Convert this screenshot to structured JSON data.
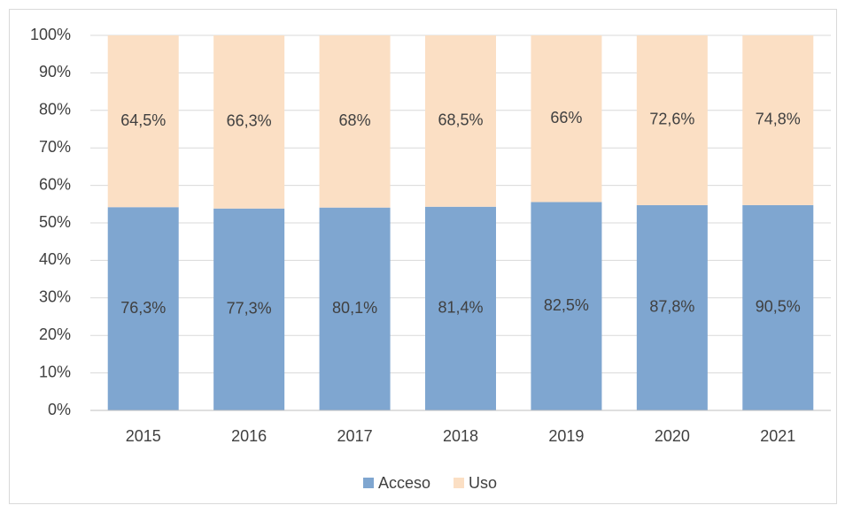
{
  "chart_data": {
    "type": "bar",
    "stacking": "percent",
    "categories": [
      "2015",
      "2016",
      "2017",
      "2018",
      "2019",
      "2020",
      "2021"
    ],
    "series": [
      {
        "name": "Acceso",
        "color": "#7fa6d0",
        "values": [
          76.3,
          77.3,
          80.1,
          81.4,
          82.5,
          87.8,
          90.5
        ],
        "value_labels": [
          "76,3%",
          "77,3%",
          "80,1%",
          "81,4%",
          "82,5%",
          "87,8%",
          "90,5%"
        ]
      },
      {
        "name": "Uso",
        "color": "#fbdfc4",
        "values": [
          64.5,
          66.3,
          68,
          68.5,
          66,
          72.6,
          74.8
        ],
        "value_labels": [
          "64,5%",
          "66,3%",
          "68%",
          "68,5%",
          "66%",
          "72,6%",
          "74,8%"
        ]
      }
    ],
    "ylim": [
      0,
      100
    ],
    "yticks": [
      {
        "value": 0,
        "label": "0%"
      },
      {
        "value": 10,
        "label": "10%"
      },
      {
        "value": 20,
        "label": "20%"
      },
      {
        "value": 30,
        "label": "30%"
      },
      {
        "value": 40,
        "label": "40%"
      },
      {
        "value": 50,
        "label": "50%"
      },
      {
        "value": 60,
        "label": "60%"
      },
      {
        "value": 70,
        "label": "70%"
      },
      {
        "value": 80,
        "label": "80%"
      },
      {
        "value": 90,
        "label": "90%"
      },
      {
        "value": 100,
        "label": "100%"
      }
    ],
    "grid": true,
    "legend": "bottom"
  }
}
